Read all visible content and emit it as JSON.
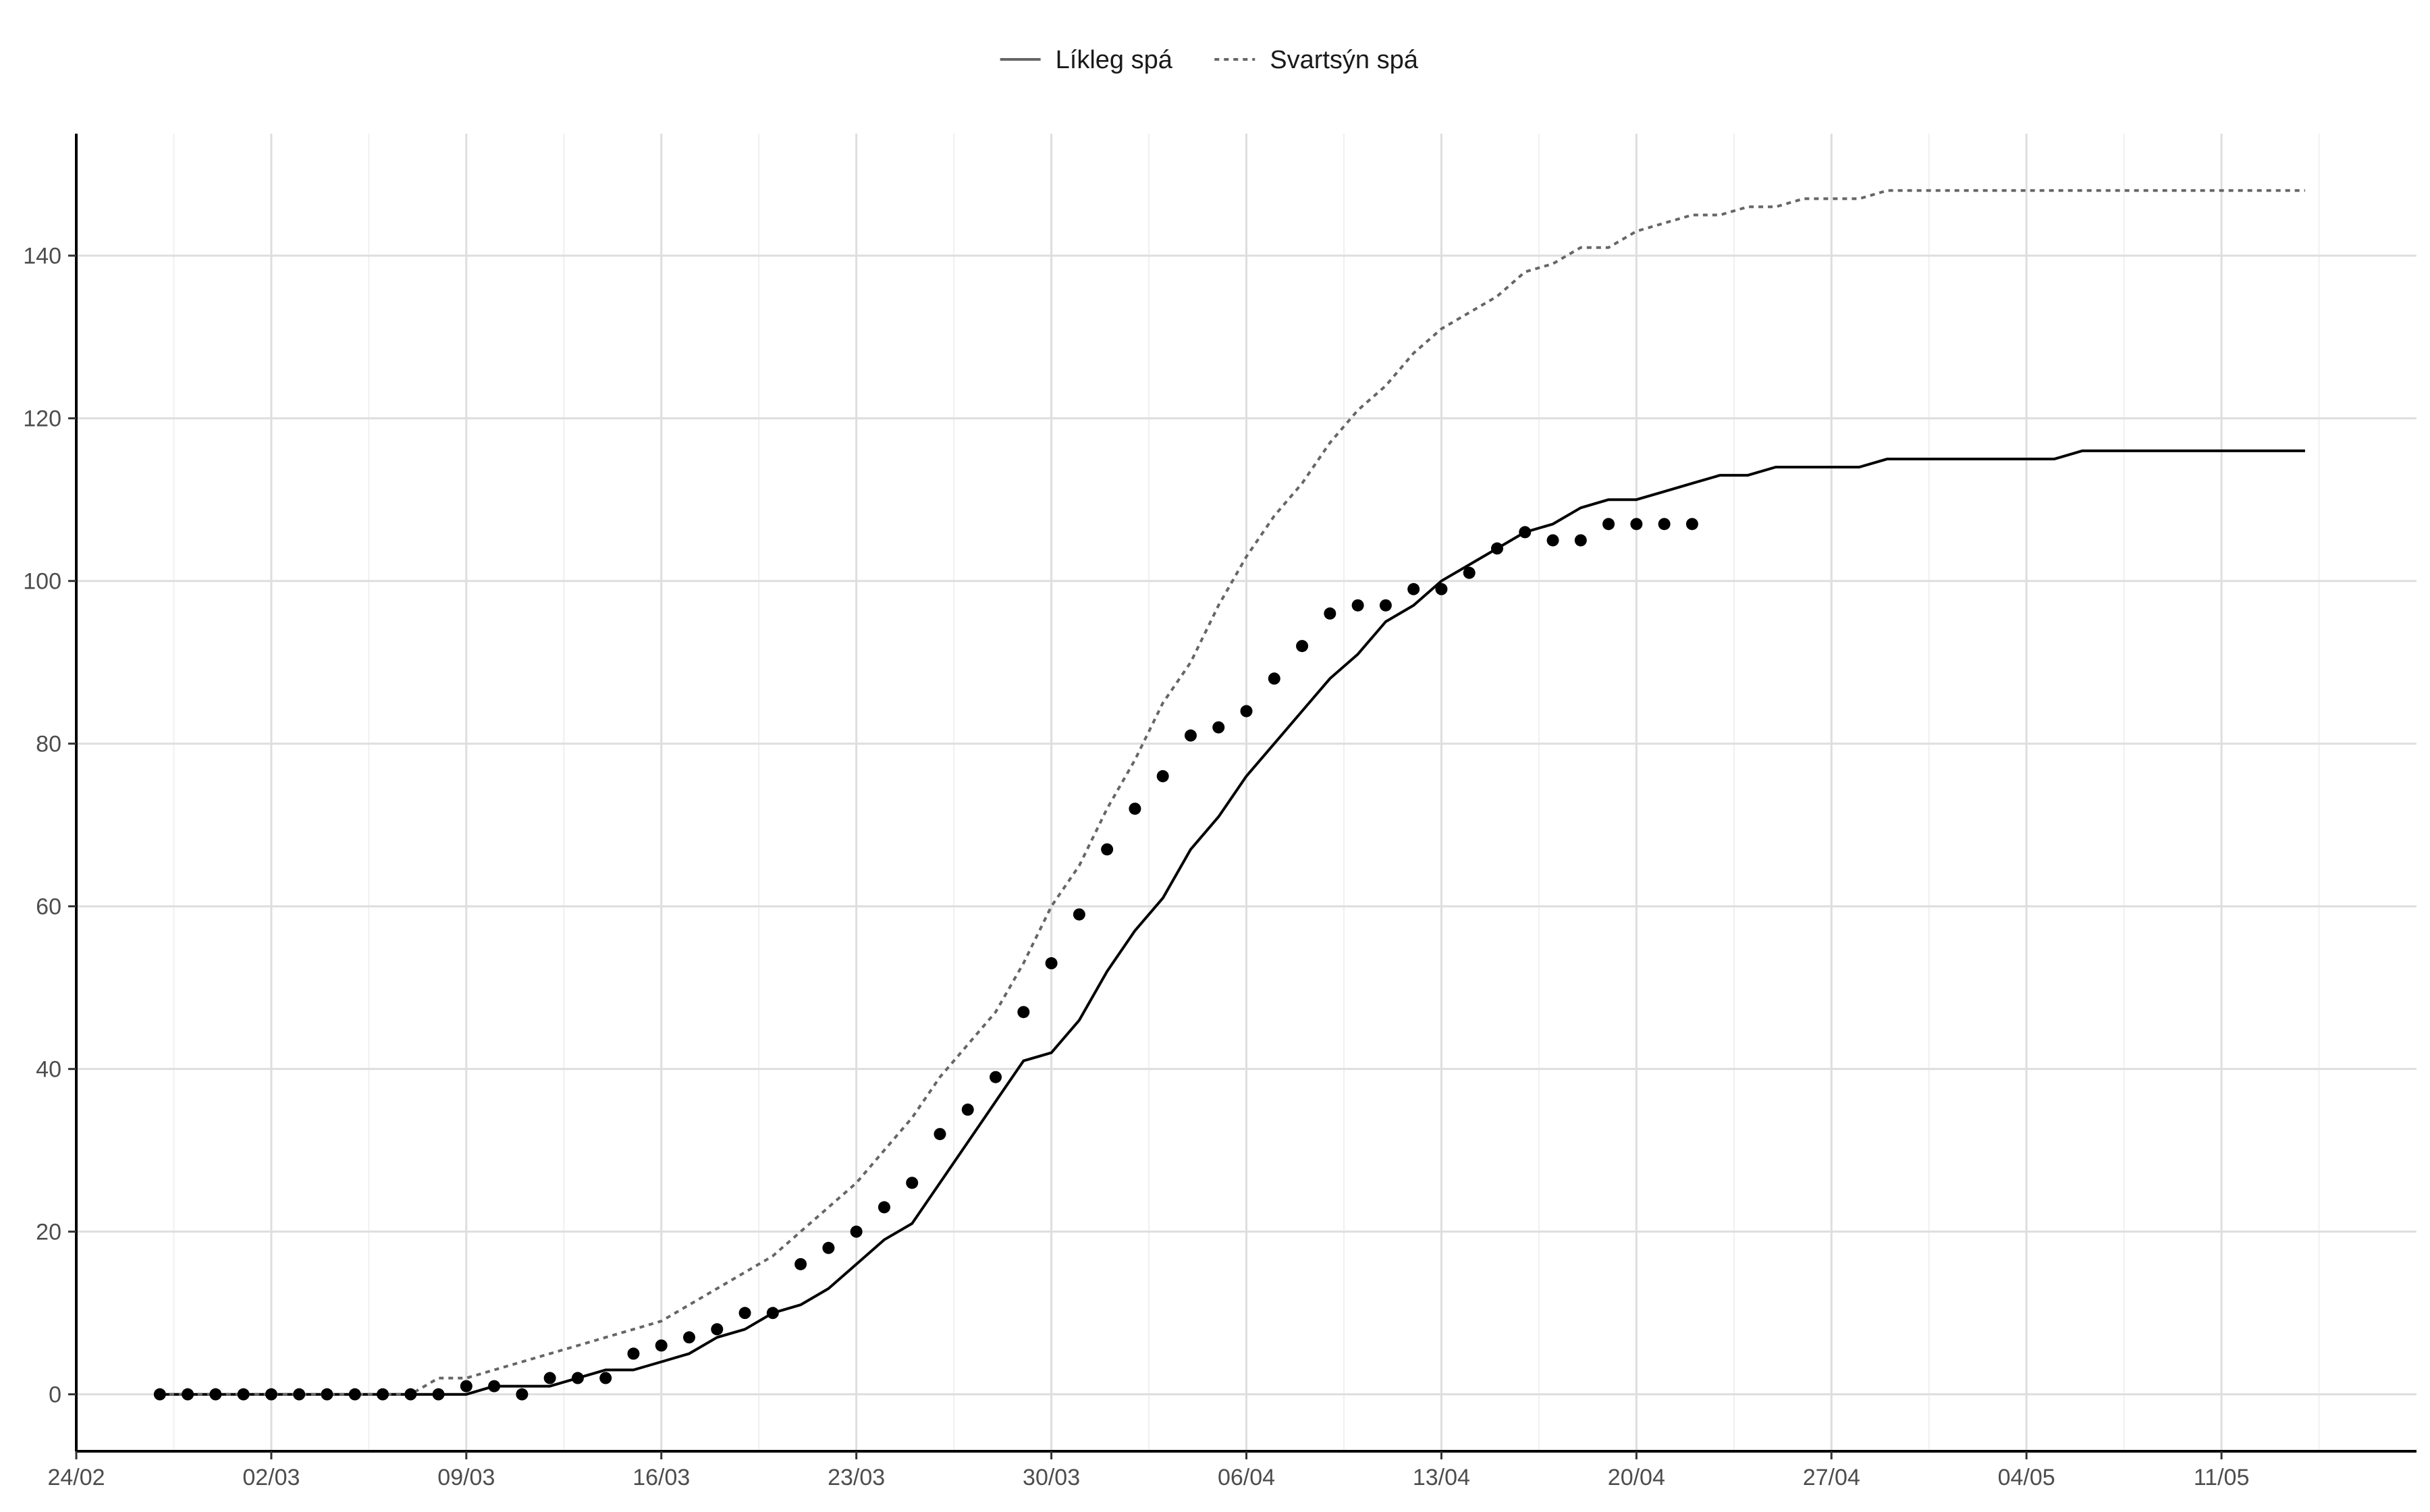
{
  "chart_data": {
    "type": "line",
    "title": "",
    "xlabel": "",
    "ylabel": "",
    "x_axis": {
      "type": "date",
      "range": [
        "2020-02-24",
        "2020-05-18"
      ],
      "ticks": [
        "2020-02-24",
        "2020-03-02",
        "2020-03-09",
        "2020-03-16",
        "2020-03-23",
        "2020-03-30",
        "2020-04-06",
        "2020-04-13",
        "2020-04-20",
        "2020-04-27",
        "2020-05-04",
        "2020-05-11"
      ],
      "tick_labels": [
        "24/02",
        "02/03",
        "09/03",
        "16/03",
        "23/03",
        "30/03",
        "06/04",
        "13/04",
        "20/04",
        "27/04",
        "04/05",
        "11/05"
      ]
    },
    "y_axis": {
      "range": [
        -7,
        155
      ],
      "ticks": [
        0,
        20,
        40,
        60,
        80,
        100,
        120,
        140
      ],
      "tick_labels": [
        "0",
        "20",
        "40",
        "60",
        "80",
        "100",
        "120",
        "140"
      ]
    },
    "grid": true,
    "legend": {
      "placement": "top",
      "items": [
        {
          "label": "Líkleg spá",
          "style": "solid"
        },
        {
          "label": "Svartsýn spá",
          "style": "dotted"
        }
      ]
    },
    "series": [
      {
        "name": "Líkleg spá",
        "style": "solid",
        "color": "#000000",
        "points": [
          [
            "2020-02-27",
            0
          ],
          [
            "2020-03-07",
            0
          ],
          [
            "2020-03-08",
            0
          ],
          [
            "2020-03-09",
            0
          ],
          [
            "2020-03-10",
            1
          ],
          [
            "2020-03-12",
            1
          ],
          [
            "2020-03-13",
            2
          ],
          [
            "2020-03-14",
            3
          ],
          [
            "2020-03-15",
            3
          ],
          [
            "2020-03-16",
            4
          ],
          [
            "2020-03-17",
            5
          ],
          [
            "2020-03-18",
            7
          ],
          [
            "2020-03-19",
            8
          ],
          [
            "2020-03-20",
            10
          ],
          [
            "2020-03-21",
            11
          ],
          [
            "2020-03-22",
            13
          ],
          [
            "2020-03-23",
            16
          ],
          [
            "2020-03-24",
            19
          ],
          [
            "2020-03-25",
            21
          ],
          [
            "2020-03-26",
            26
          ],
          [
            "2020-03-27",
            31
          ],
          [
            "2020-03-28",
            36
          ],
          [
            "2020-03-29",
            41
          ],
          [
            "2020-03-30",
            42
          ],
          [
            "2020-03-31",
            46
          ],
          [
            "2020-04-01",
            52
          ],
          [
            "2020-04-02",
            57
          ],
          [
            "2020-04-03",
            61
          ],
          [
            "2020-04-04",
            67
          ],
          [
            "2020-04-05",
            71
          ],
          [
            "2020-04-06",
            76
          ],
          [
            "2020-04-07",
            80
          ],
          [
            "2020-04-08",
            84
          ],
          [
            "2020-04-09",
            88
          ],
          [
            "2020-04-10",
            91
          ],
          [
            "2020-04-11",
            95
          ],
          [
            "2020-04-12",
            97
          ],
          [
            "2020-04-13",
            100
          ],
          [
            "2020-04-14",
            102
          ],
          [
            "2020-04-15",
            104
          ],
          [
            "2020-04-16",
            106
          ],
          [
            "2020-04-17",
            107
          ],
          [
            "2020-04-18",
            109
          ],
          [
            "2020-04-19",
            110
          ],
          [
            "2020-04-20",
            110
          ],
          [
            "2020-04-21",
            111
          ],
          [
            "2020-04-22",
            112
          ],
          [
            "2020-04-23",
            113
          ],
          [
            "2020-04-24",
            113
          ],
          [
            "2020-04-25",
            114
          ],
          [
            "2020-04-28",
            114
          ],
          [
            "2020-04-29",
            115
          ],
          [
            "2020-05-05",
            115
          ],
          [
            "2020-05-06",
            116
          ],
          [
            "2020-05-14",
            116
          ]
        ]
      },
      {
        "name": "Svartsýn spá",
        "style": "dotted",
        "color": "#666666",
        "points": [
          [
            "2020-02-27",
            0
          ],
          [
            "2020-03-06",
            0
          ],
          [
            "2020-03-07",
            0
          ],
          [
            "2020-03-08",
            2
          ],
          [
            "2020-03-09",
            2
          ],
          [
            "2020-03-10",
            3
          ],
          [
            "2020-03-11",
            4
          ],
          [
            "2020-03-12",
            5
          ],
          [
            "2020-03-13",
            6
          ],
          [
            "2020-03-14",
            7
          ],
          [
            "2020-03-15",
            8
          ],
          [
            "2020-03-16",
            9
          ],
          [
            "2020-03-17",
            11
          ],
          [
            "2020-03-18",
            13
          ],
          [
            "2020-03-19",
            15
          ],
          [
            "2020-03-20",
            17
          ],
          [
            "2020-03-21",
            20
          ],
          [
            "2020-03-22",
            23
          ],
          [
            "2020-03-23",
            26
          ],
          [
            "2020-03-24",
            30
          ],
          [
            "2020-03-25",
            34
          ],
          [
            "2020-03-26",
            39
          ],
          [
            "2020-03-27",
            43
          ],
          [
            "2020-03-28",
            47
          ],
          [
            "2020-03-29",
            53
          ],
          [
            "2020-03-30",
            60
          ],
          [
            "2020-03-31",
            65
          ],
          [
            "2020-04-01",
            72
          ],
          [
            "2020-04-02",
            78
          ],
          [
            "2020-04-03",
            85
          ],
          [
            "2020-04-04",
            90
          ],
          [
            "2020-04-05",
            97
          ],
          [
            "2020-04-06",
            103
          ],
          [
            "2020-04-07",
            108
          ],
          [
            "2020-04-08",
            112
          ],
          [
            "2020-04-09",
            117
          ],
          [
            "2020-04-10",
            121
          ],
          [
            "2020-04-11",
            124
          ],
          [
            "2020-04-12",
            128
          ],
          [
            "2020-04-13",
            131
          ],
          [
            "2020-04-14",
            133
          ],
          [
            "2020-04-15",
            135
          ],
          [
            "2020-04-16",
            138
          ],
          [
            "2020-04-17",
            139
          ],
          [
            "2020-04-18",
            141
          ],
          [
            "2020-04-19",
            141
          ],
          [
            "2020-04-20",
            143
          ],
          [
            "2020-04-21",
            144
          ],
          [
            "2020-04-22",
            145
          ],
          [
            "2020-04-23",
            145
          ],
          [
            "2020-04-24",
            146
          ],
          [
            "2020-04-25",
            146
          ],
          [
            "2020-04-26",
            147
          ],
          [
            "2020-04-28",
            147
          ],
          [
            "2020-04-29",
            148
          ],
          [
            "2020-05-14",
            148
          ]
        ]
      },
      {
        "name": "",
        "style": "points",
        "color": "#000000",
        "points": [
          [
            "2020-02-27",
            0
          ],
          [
            "2020-02-28",
            0
          ],
          [
            "2020-02-29",
            0
          ],
          [
            "2020-03-01",
            0
          ],
          [
            "2020-03-02",
            0
          ],
          [
            "2020-03-03",
            0
          ],
          [
            "2020-03-04",
            0
          ],
          [
            "2020-03-05",
            0
          ],
          [
            "2020-03-06",
            0
          ],
          [
            "2020-03-07",
            0
          ],
          [
            "2020-03-08",
            0
          ],
          [
            "2020-03-09",
            1
          ],
          [
            "2020-03-10",
            1
          ],
          [
            "2020-03-11",
            0
          ],
          [
            "2020-03-12",
            2
          ],
          [
            "2020-03-13",
            2
          ],
          [
            "2020-03-14",
            2
          ],
          [
            "2020-03-15",
            5
          ],
          [
            "2020-03-16",
            6
          ],
          [
            "2020-03-17",
            7
          ],
          [
            "2020-03-18",
            8
          ],
          [
            "2020-03-19",
            10
          ],
          [
            "2020-03-20",
            10
          ],
          [
            "2020-03-21",
            16
          ],
          [
            "2020-03-22",
            18
          ],
          [
            "2020-03-23",
            20
          ],
          [
            "2020-03-24",
            23
          ],
          [
            "2020-03-25",
            26
          ],
          [
            "2020-03-26",
            32
          ],
          [
            "2020-03-27",
            35
          ],
          [
            "2020-03-28",
            39
          ],
          [
            "2020-03-29",
            47
          ],
          [
            "2020-03-30",
            53
          ],
          [
            "2020-03-31",
            59
          ],
          [
            "2020-04-01",
            67
          ],
          [
            "2020-04-02",
            72
          ],
          [
            "2020-04-03",
            76
          ],
          [
            "2020-04-04",
            81
          ],
          [
            "2020-04-05",
            82
          ],
          [
            "2020-04-06",
            84
          ],
          [
            "2020-04-07",
            88
          ],
          [
            "2020-04-08",
            92
          ],
          [
            "2020-04-09",
            96
          ],
          [
            "2020-04-10",
            97
          ],
          [
            "2020-04-11",
            97
          ],
          [
            "2020-04-12",
            99
          ],
          [
            "2020-04-13",
            99
          ],
          [
            "2020-04-14",
            101
          ],
          [
            "2020-04-15",
            104
          ],
          [
            "2020-04-16",
            106
          ],
          [
            "2020-04-17",
            105
          ],
          [
            "2020-04-18",
            105
          ],
          [
            "2020-04-19",
            107
          ],
          [
            "2020-04-20",
            107
          ],
          [
            "2020-04-21",
            107
          ],
          [
            "2020-04-22",
            107
          ]
        ]
      }
    ]
  }
}
